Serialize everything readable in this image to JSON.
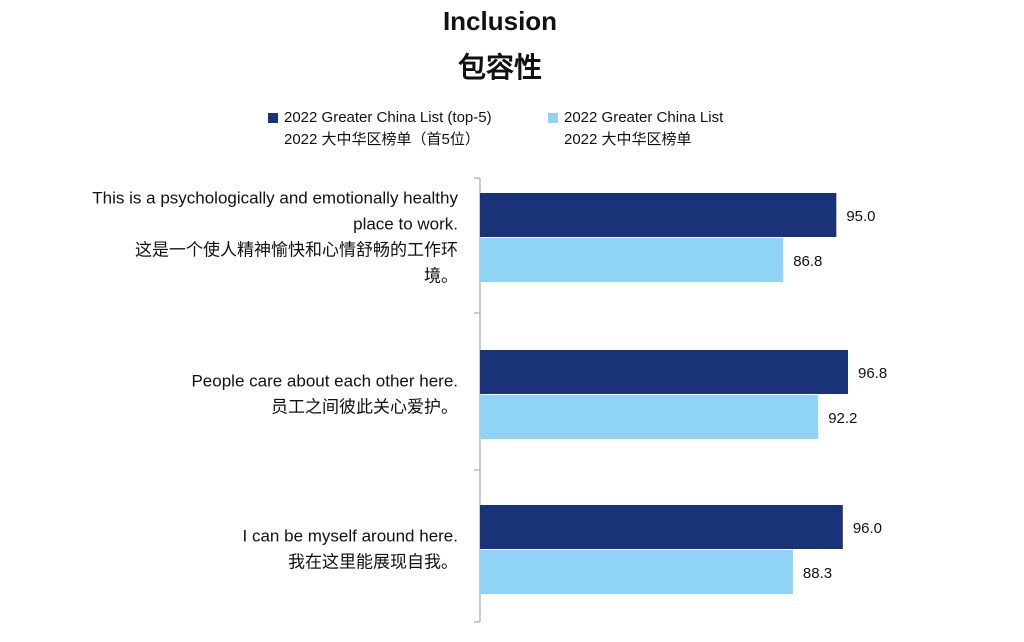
{
  "title": "Inclusion",
  "title_cn": "包容性",
  "legend": [
    {
      "line1": "2022 Greater China List (top-5)",
      "line2": "2022 大中华区榜单（首5位）",
      "color": "#1a3278"
    },
    {
      "line1": "2022 Greater China List",
      "line2": "2022 大中华区榜单",
      "color": "#8fd3f5"
    }
  ],
  "chart_data": {
    "type": "bar",
    "orientation": "horizontal",
    "categories": [
      {
        "en": [
          "This is a psychologically and emotionally healthy",
          "place to work."
        ],
        "cn": [
          "这是一个使人精神愉快和心情舒畅的工作环",
          "境。"
        ]
      },
      {
        "en": [
          "People care about each other here."
        ],
        "cn": [
          "员工之间彼此关心爱护。"
        ]
      },
      {
        "en": [
          "I can be myself around here."
        ],
        "cn": [
          "我在这里能展现自我。"
        ]
      }
    ],
    "series": [
      {
        "name": "2022 Greater China List (top-5)",
        "color": "#1a3278",
        "values": [
          95.0,
          96.8,
          96.0
        ]
      },
      {
        "name": "2022 Greater China List",
        "color": "#8fd3f5",
        "values": [
          86.8,
          92.2,
          88.3
        ]
      }
    ],
    "data_labels": [
      [
        "95.0",
        "96.8",
        "96.0"
      ],
      [
        "86.8",
        "92.2",
        "88.3"
      ]
    ],
    "xlim": [
      40,
      100
    ],
    "grid": false
  }
}
